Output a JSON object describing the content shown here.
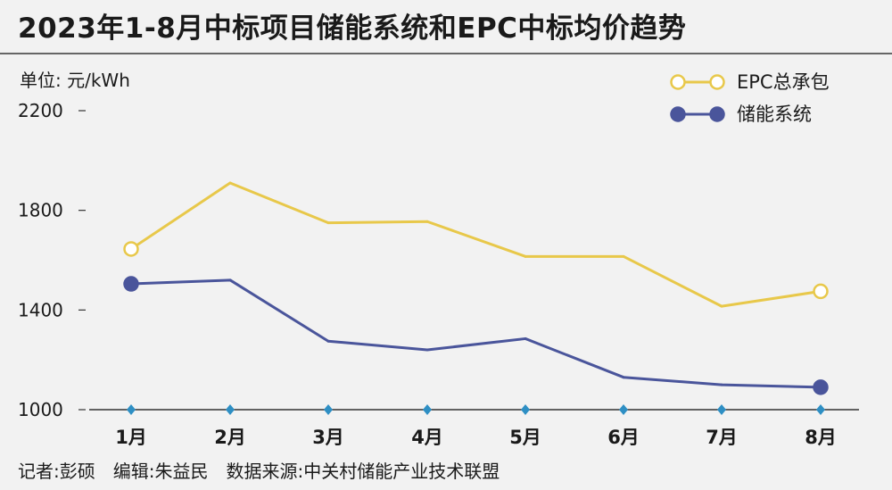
{
  "title": "2023年1-8月中标项目储能系统和EPC中标均价趋势",
  "unit_label": "单位: 元/kWh",
  "footer": "记者:彭硕　编辑:朱益民　数据来源:中关村储能产业技术联盟",
  "colors": {
    "epc": "#e8c84a",
    "storage": "#4a559b",
    "axis": "#333333",
    "tick_marker": "#2e8fc4"
  },
  "chart_data": {
    "type": "line",
    "categories": [
      "1月",
      "2月",
      "3月",
      "4月",
      "5月",
      "6月",
      "7月",
      "8月"
    ],
    "ylim": [
      1000,
      2200
    ],
    "yticks": [
      "2200",
      "1800",
      "1400",
      "1000"
    ],
    "grid": false,
    "legend_position": "top-right",
    "series": [
      {
        "name": "EPC总承包",
        "values": [
          1645,
          1910,
          1750,
          1755,
          1615,
          1615,
          1415,
          1475
        ]
      },
      {
        "name": "储能系统",
        "values": [
          1505,
          1520,
          1275,
          1240,
          1285,
          1130,
          1100,
          1090
        ]
      }
    ]
  }
}
